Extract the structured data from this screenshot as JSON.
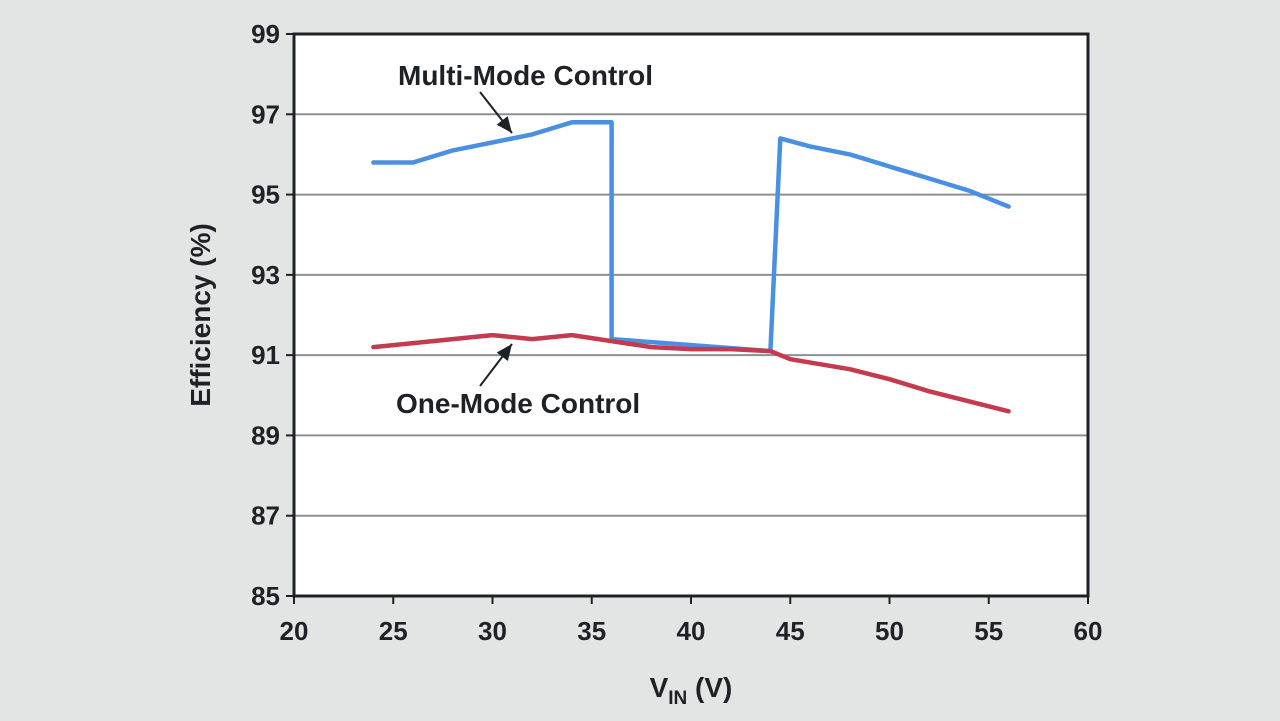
{
  "chart_data": {
    "type": "line",
    "xlabel": {
      "main": "V",
      "sub": "IN",
      "unit": " (V)"
    },
    "ylabel": "Efficiency (%)",
    "xlim": [
      20,
      60
    ],
    "ylim": [
      85,
      99
    ],
    "xticks": [
      20,
      25,
      30,
      35,
      40,
      45,
      50,
      55,
      60
    ],
    "yticks": [
      85,
      87,
      89,
      91,
      93,
      95,
      97,
      99
    ],
    "grid": "horizontal",
    "series": [
      {
        "name": "Multi-Mode Control",
        "color": "#4a90e2",
        "x": [
          24,
          26,
          28,
          30,
          32,
          34,
          36,
          36,
          44,
          44.5,
          46,
          48,
          50,
          52,
          54,
          56
        ],
        "y": [
          95.8,
          95.8,
          96.1,
          96.3,
          96.5,
          96.8,
          96.8,
          91.4,
          91.1,
          96.4,
          96.2,
          96.0,
          95.7,
          95.4,
          95.1,
          94.7
        ]
      },
      {
        "name": "One-Mode Control",
        "color": "#c43a4e",
        "x": [
          24,
          26,
          28,
          30,
          32,
          34,
          36,
          38,
          40,
          42,
          44,
          45,
          48,
          50,
          52,
          54,
          56
        ],
        "y": [
          91.2,
          91.3,
          91.4,
          91.5,
          91.4,
          91.5,
          91.35,
          91.2,
          91.15,
          91.15,
          91.1,
          90.9,
          90.65,
          90.4,
          90.1,
          89.85,
          89.6
        ]
      }
    ],
    "annotations": [
      {
        "text": "Multi-Mode Control",
        "series": "Multi-Mode Control"
      },
      {
        "text": "One-Mode Control",
        "series": "One-Mode Control"
      }
    ]
  }
}
